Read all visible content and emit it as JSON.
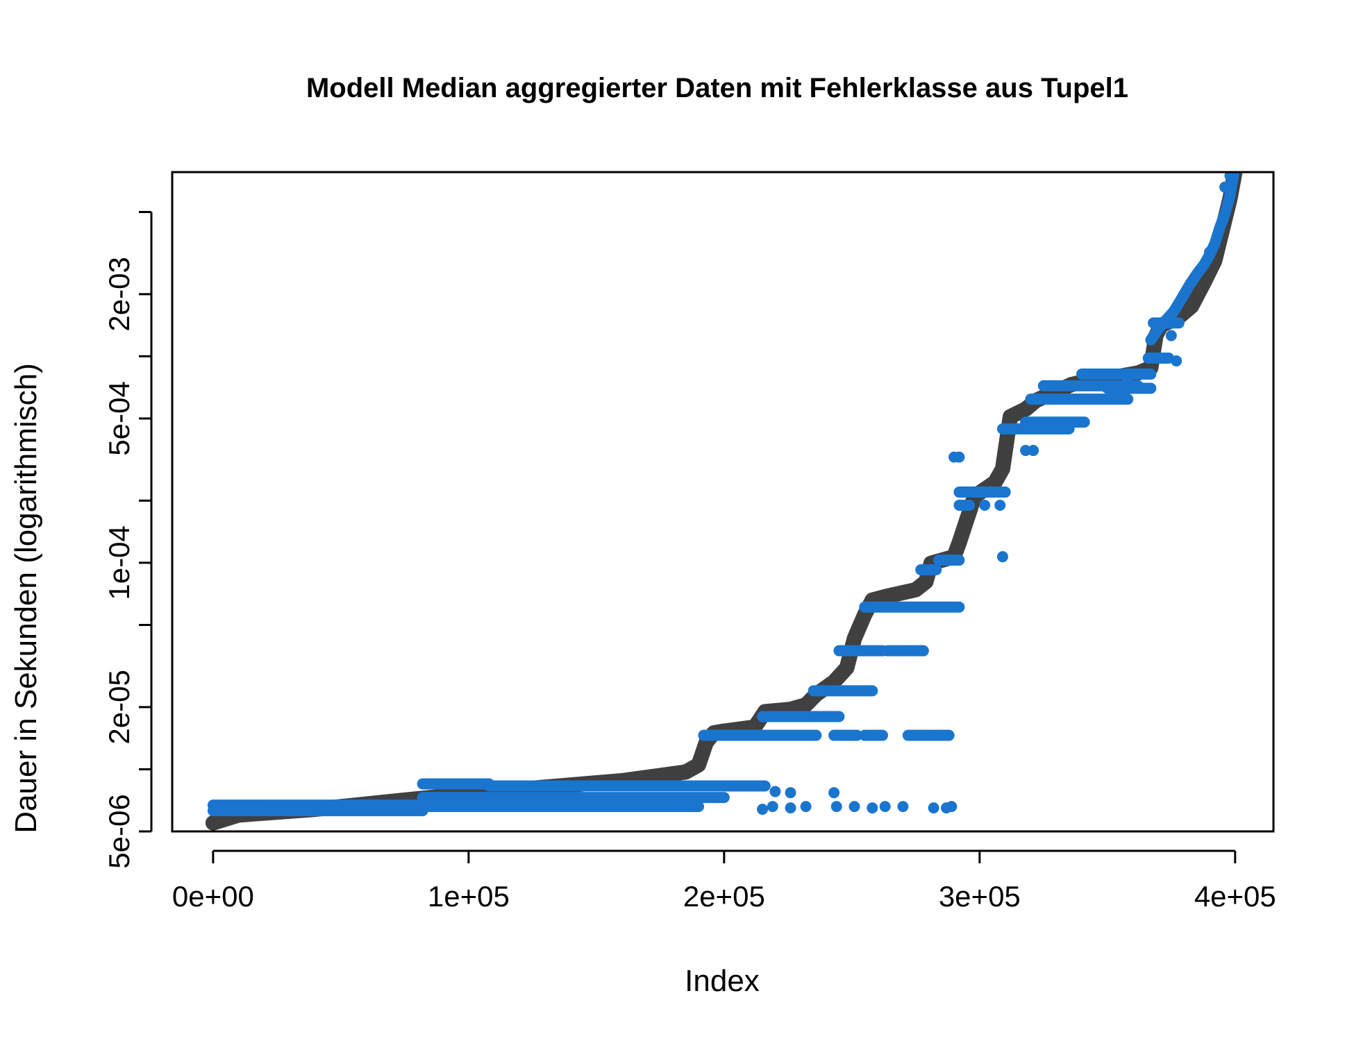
{
  "chart_data": {
    "type": "scatter",
    "title": "Modell  Median aggregierter Daten mit Fehlerklasse aus Tupel1",
    "xlabel": "Index",
    "ylabel": "Dauer in Sekunden (logarithmisch)",
    "y_scale": "log",
    "xlim": [
      -16000,
      415000
    ],
    "ylim": [
      5e-06,
      0.0078
    ],
    "x_ticks": [
      {
        "value": 0,
        "label": "0e+00"
      },
      {
        "value": 100000,
        "label": "1e+05"
      },
      {
        "value": 200000,
        "label": "2e+05"
      },
      {
        "value": 300000,
        "label": "3e+05"
      },
      {
        "value": 400000,
        "label": "4e+05"
      }
    ],
    "y_ticks": [
      {
        "value": 5e-06,
        "label": "5e-06"
      },
      {
        "value": 1e-05,
        "label": ""
      },
      {
        "value": 2e-05,
        "label": "2e-05"
      },
      {
        "value": 5e-05,
        "label": ""
      },
      {
        "value": 0.0001,
        "label": "1e-04"
      },
      {
        "value": 0.0002,
        "label": ""
      },
      {
        "value": 0.0005,
        "label": "5e-04"
      },
      {
        "value": 0.001,
        "label": ""
      },
      {
        "value": 0.002,
        "label": "2e-03"
      },
      {
        "value": 0.005,
        "label": ""
      }
    ],
    "grid": false,
    "colors": {
      "model": "#404040",
      "data": "#1a75cf"
    },
    "series": [
      {
        "name": "",
        "style": "thick-line",
        "x": [
          0,
          10000,
          40000,
          80000,
          120000,
          160000,
          185000,
          190000,
          193000,
          196000,
          200000,
          212000,
          216000,
          226000,
          232000,
          236000,
          243000,
          248000,
          251000,
          255000,
          258000,
          264000,
          275000,
          279000,
          281000,
          290000,
          292000,
          298000,
          306000,
          309000,
          312000,
          318000,
          322000,
          328000,
          336000,
          342000,
          352000,
          362000,
          367000,
          369000,
          371000,
          378000,
          383000,
          388000,
          392000,
          395000,
          398000,
          400000
        ],
        "y": [
          5.5e-06,
          6e-06,
          6.4e-06,
          7.2e-06,
          8e-06,
          8.8e-06,
          9.7e-06,
          1.05e-05,
          1.35e-05,
          1.5e-05,
          1.53e-05,
          1.6e-05,
          1.9e-05,
          1.95e-05,
          2.05e-05,
          2.3e-05,
          2.65e-05,
          3.1e-05,
          4.3e-05,
          5.6e-05,
          6.6e-05,
          6.9e-05,
          7.4e-05,
          8.1e-05,
          9.95e-05,
          0.000107,
          0.000125,
          0.00021,
          0.000245,
          0.000285,
          0.00051,
          0.000555,
          0.00061,
          0.00066,
          0.00073,
          0.00076,
          0.00079,
          0.00083,
          0.00088,
          0.00126,
          0.00141,
          0.00155,
          0.00175,
          0.0023,
          0.0029,
          0.0041,
          0.0058,
          0.0079
        ]
      },
      {
        "name": "",
        "style": "points",
        "segments": [
          {
            "x0": 0,
            "x1": 82000,
            "y": 6.7e-06
          },
          {
            "x0": 0,
            "x1": 82000,
            "y": 6.3e-06
          },
          {
            "x0": 82000,
            "x1": 108000,
            "y": 8.5e-06
          },
          {
            "x0": 108000,
            "x1": 216000,
            "y": 8.3e-06
          },
          {
            "x0": 82000,
            "x1": 200000,
            "y": 7.3e-06
          },
          {
            "x0": 82000,
            "x1": 190000,
            "y": 6.6e-06
          },
          {
            "x0": 192000,
            "x1": 236000,
            "y": 1.46e-05
          },
          {
            "x0": 243000,
            "x1": 252000,
            "y": 1.46e-05
          },
          {
            "x0": 255000,
            "x1": 262000,
            "y": 1.46e-05
          },
          {
            "x0": 272000,
            "x1": 282000,
            "y": 1.46e-05
          },
          {
            "x0": 283000,
            "x1": 288000,
            "y": 1.46e-05
          },
          {
            "x0": 215000,
            "x1": 245000,
            "y": 1.8e-05
          },
          {
            "x0": 235000,
            "x1": 258000,
            "y": 2.4e-05
          },
          {
            "x0": 245000,
            "x1": 262000,
            "y": 3.75e-05
          },
          {
            "x0": 264000,
            "x1": 272000,
            "y": 3.75e-05
          },
          {
            "x0": 273000,
            "x1": 278000,
            "y": 3.75e-05
          },
          {
            "x0": 255000,
            "x1": 292000,
            "y": 6.1e-05
          },
          {
            "x0": 277000,
            "x1": 283000,
            "y": 9.25e-05
          },
          {
            "x0": 284000,
            "x1": 292000,
            "y": 0.000103
          },
          {
            "x0": 292000,
            "x1": 310000,
            "y": 0.00022
          },
          {
            "x0": 292000,
            "x1": 296000,
            "y": 0.00019
          },
          {
            "x0": 309000,
            "x1": 335000,
            "y": 0.000445
          },
          {
            "x0": 318000,
            "x1": 341000,
            "y": 0.00048
          },
          {
            "x0": 320000,
            "x1": 358000,
            "y": 0.00062
          },
          {
            "x0": 325000,
            "x1": 362000,
            "y": 0.00072
          },
          {
            "x0": 340000,
            "x1": 367000,
            "y": 0.00082
          },
          {
            "x0": 350000,
            "x1": 367000,
            "y": 0.0007
          },
          {
            "x0": 368000,
            "x1": 378000,
            "y": 0.00145
          },
          {
            "x0": 366000,
            "x1": 374000,
            "y": 0.00098
          }
        ],
        "points": [
          {
            "x": 220000,
            "y": 7.8e-06
          },
          {
            "x": 226000,
            "y": 7.7e-06
          },
          {
            "x": 219000,
            "y": 6.6e-06
          },
          {
            "x": 215000,
            "y": 6.4e-06
          },
          {
            "x": 226000,
            "y": 6.5e-06
          },
          {
            "x": 232000,
            "y": 6.6e-06
          },
          {
            "x": 243000,
            "y": 7.7e-06
          },
          {
            "x": 244000,
            "y": 6.6e-06
          },
          {
            "x": 251000,
            "y": 6.6e-06
          },
          {
            "x": 258000,
            "y": 6.5e-06
          },
          {
            "x": 263000,
            "y": 6.6e-06
          },
          {
            "x": 270000,
            "y": 6.6e-06
          },
          {
            "x": 282000,
            "y": 6.5e-06
          },
          {
            "x": 289000,
            "y": 6.6e-06
          },
          {
            "x": 287000,
            "y": 6.5e-06
          },
          {
            "x": 290000,
            "y": 0.000325
          },
          {
            "x": 292000,
            "y": 0.000325
          },
          {
            "x": 302000,
            "y": 0.00019
          },
          {
            "x": 308000,
            "y": 0.00019
          },
          {
            "x": 309000,
            "y": 0.000107
          },
          {
            "x": 310000,
            "y": 0.00022
          },
          {
            "x": 318000,
            "y": 0.00035
          },
          {
            "x": 321000,
            "y": 0.00035
          },
          {
            "x": 358000,
            "y": 0.00079
          },
          {
            "x": 375000,
            "y": 0.00126
          },
          {
            "x": 377000,
            "y": 0.00095
          },
          {
            "x": 390000,
            "y": 0.0032
          },
          {
            "x": 396000,
            "y": 0.0066
          },
          {
            "x": 398000,
            "y": 0.0075
          }
        ],
        "curve_x": [
          367000,
          370000,
          373000,
          376000,
          379000,
          382000,
          385000,
          388000,
          390000,
          392000,
          394000,
          396000,
          398000,
          399500
        ],
        "curve_y": [
          0.0012,
          0.00136,
          0.0015,
          0.00165,
          0.0019,
          0.0022,
          0.0025,
          0.0028,
          0.0031,
          0.0035,
          0.0042,
          0.0049,
          0.006,
          0.0078
        ]
      }
    ]
  }
}
